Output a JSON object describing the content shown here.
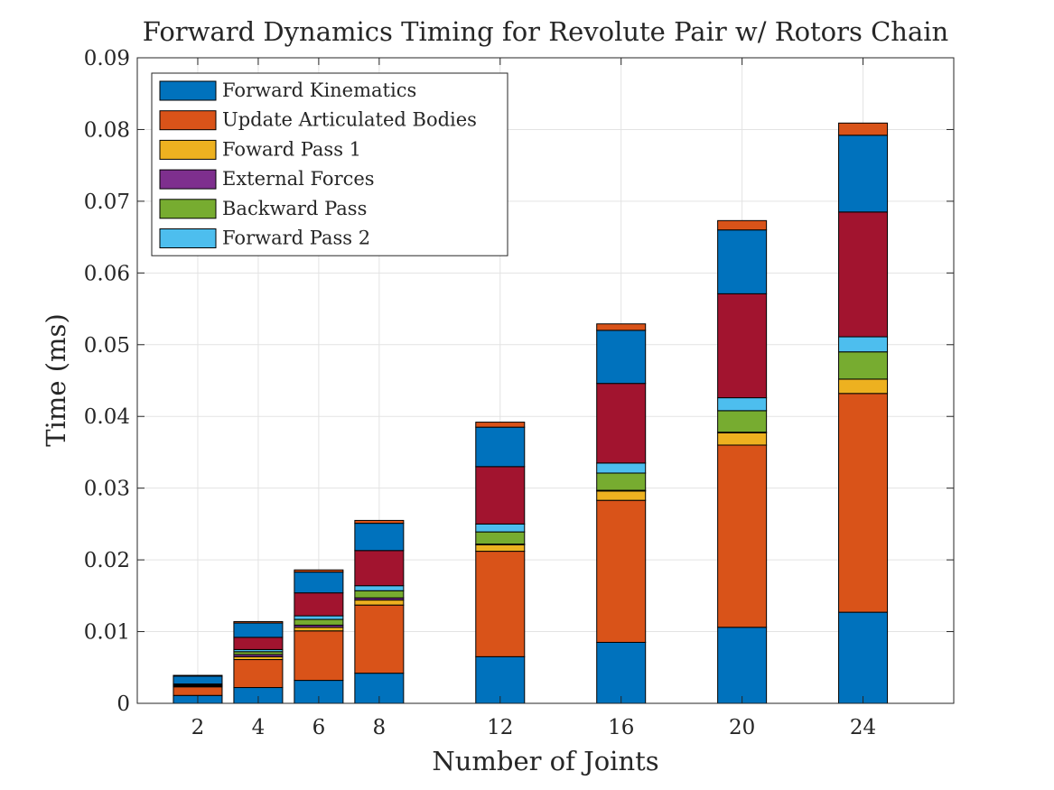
{
  "chart_data": {
    "type": "bar",
    "stacked": true,
    "title": "Forward Dynamics Timing for Revolute Pair w/ Rotors Chain",
    "xlabel": "Number of Joints",
    "ylabel": "Time (ms)",
    "ylim": [
      0,
      0.09
    ],
    "yticks": [
      0,
      0.01,
      0.02,
      0.03,
      0.04,
      0.05,
      0.06,
      0.07,
      0.08,
      0.09
    ],
    "ytick_labels": [
      "0",
      "0.01",
      "0.02",
      "0.03",
      "0.04",
      "0.05",
      "0.06",
      "0.07",
      "0.08",
      "0.09"
    ],
    "xlim": [
      0,
      27
    ],
    "categories": [
      2,
      4,
      6,
      8,
      12,
      16,
      20,
      24
    ],
    "xtick_labels": [
      "2",
      "4",
      "6",
      "8",
      "12",
      "16",
      "20",
      "24"
    ],
    "grid": true,
    "legend_position": "top-left",
    "series": [
      {
        "name": "Forward Kinematics",
        "color": "#0072BD",
        "values": [
          0.0011,
          0.0022,
          0.0032,
          0.0042,
          0.0065,
          0.0085,
          0.0106,
          0.0127
        ]
      },
      {
        "name": "Update Articulated Bodies",
        "color": "#D95319",
        "values": [
          0.0012,
          0.0039,
          0.0069,
          0.0095,
          0.0147,
          0.0198,
          0.0254,
          0.0305
        ]
      },
      {
        "name": "Foward Pass 1",
        "color": "#EDB120",
        "values": [
          0.0001,
          0.0004,
          0.0005,
          0.0007,
          0.0009,
          0.0013,
          0.0017,
          0.002
        ]
      },
      {
        "name": "External Forces",
        "color": "#7E2F8E",
        "values": [
          0.0001,
          0.0003,
          0.0003,
          0.0003,
          0.0001,
          0.0001,
          0.0001,
          0.0
        ]
      },
      {
        "name": "Backward Pass",
        "color": "#77AC30",
        "values": [
          0.0001,
          0.0004,
          0.0008,
          0.001,
          0.0017,
          0.0024,
          0.003,
          0.0038
        ]
      },
      {
        "name": "Forward Pass 2",
        "color": "#4DBEEE",
        "values": [
          0.0001,
          0.0003,
          0.0005,
          0.0007,
          0.0011,
          0.0014,
          0.0018,
          0.0021
        ]
      },
      {
        "color": "#A2142F",
        "values": [
          0.0,
          0.0017,
          0.0032,
          0.0049,
          0.008,
          0.0111,
          0.0145,
          0.0174
        ]
      },
      {
        "color": "#0072BD",
        "values": [
          0.0011,
          0.002,
          0.0029,
          0.0038,
          0.0055,
          0.0074,
          0.0089,
          0.0107
        ]
      },
      {
        "color": "#D95319",
        "values": [
          0.0001,
          0.0002,
          0.0003,
          0.0004,
          0.0007,
          0.0009,
          0.0013,
          0.0017
        ]
      }
    ]
  }
}
